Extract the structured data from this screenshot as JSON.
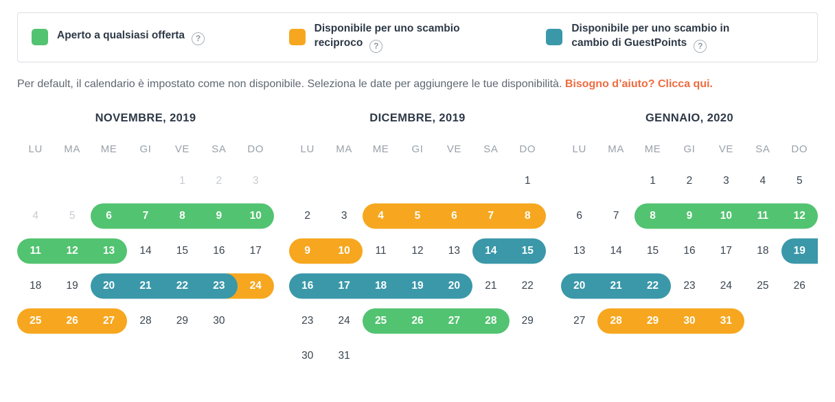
{
  "colors": {
    "green": "#52c370",
    "orange": "#f6a71f",
    "teal": "#3a98a9",
    "link": "#ee6b3f"
  },
  "legend": {
    "help_icon": "?",
    "items": [
      {
        "name": "green",
        "color": "#52c370",
        "label": "Aperto a qualsiasi offerta"
      },
      {
        "name": "orange",
        "color": "#f6a71f",
        "label": "Disponibile per uno scambio reciproco"
      },
      {
        "name": "teal",
        "color": "#3a98a9",
        "label": "Disponibile per uno scambio in cambio di GuestPoints"
      }
    ]
  },
  "intro": {
    "text": "Per default, il calendario è impostato come non disponibile. Seleziona le date per aggiungere le tue disponibilità.",
    "link": "Bisogno d’aiuto? Clicca qui."
  },
  "weekdays": [
    "LU",
    "MA",
    "ME",
    "GI",
    "VE",
    "SA",
    "DO"
  ],
  "months": [
    {
      "title": "NOVEMBRE, 2019",
      "weeks": [
        [
          null,
          null,
          null,
          null,
          {
            "n": 1,
            "muted": true
          },
          {
            "n": 2,
            "muted": true
          },
          {
            "n": 3,
            "muted": true
          }
        ],
        [
          {
            "n": 4,
            "muted": true
          },
          {
            "n": 5,
            "muted": true
          },
          {
            "n": 6,
            "c": "green",
            "p": "start"
          },
          {
            "n": 7,
            "c": "green",
            "p": "mid"
          },
          {
            "n": 8,
            "c": "green",
            "p": "mid"
          },
          {
            "n": 9,
            "c": "green",
            "p": "mid"
          },
          {
            "n": 10,
            "c": "green",
            "p": "end"
          }
        ],
        [
          {
            "n": 11,
            "c": "green",
            "p": "start"
          },
          {
            "n": 12,
            "c": "green",
            "p": "mid"
          },
          {
            "n": 13,
            "c": "green",
            "p": "end"
          },
          {
            "n": 14
          },
          {
            "n": 15
          },
          {
            "n": 16
          },
          {
            "n": 17
          }
        ],
        [
          {
            "n": 18
          },
          {
            "n": 19
          },
          {
            "n": 20,
            "c": "teal",
            "p": "start"
          },
          {
            "n": 21,
            "c": "teal",
            "p": "mid"
          },
          {
            "n": 22,
            "c": "teal",
            "p": "mid"
          },
          {
            "n": 23,
            "c": "teal",
            "p": "end"
          },
          {
            "n": 24,
            "c": "orange",
            "p": "end",
            "overlap": true
          }
        ],
        [
          {
            "n": 25,
            "c": "orange",
            "p": "start"
          },
          {
            "n": 26,
            "c": "orange",
            "p": "mid"
          },
          {
            "n": 27,
            "c": "orange",
            "p": "end"
          },
          {
            "n": 28
          },
          {
            "n": 29
          },
          {
            "n": 30
          },
          null
        ]
      ]
    },
    {
      "title": "DICEMBRE, 2019",
      "weeks": [
        [
          null,
          null,
          null,
          null,
          null,
          null,
          {
            "n": 1
          }
        ],
        [
          {
            "n": 2
          },
          {
            "n": 3
          },
          {
            "n": 4,
            "c": "orange",
            "p": "start"
          },
          {
            "n": 5,
            "c": "orange",
            "p": "mid"
          },
          {
            "n": 6,
            "c": "orange",
            "p": "mid"
          },
          {
            "n": 7,
            "c": "orange",
            "p": "mid"
          },
          {
            "n": 8,
            "c": "orange",
            "p": "end"
          }
        ],
        [
          {
            "n": 9,
            "c": "orange",
            "p": "start"
          },
          {
            "n": 10,
            "c": "orange",
            "p": "end"
          },
          {
            "n": 11
          },
          {
            "n": 12
          },
          {
            "n": 13
          },
          {
            "n": 14,
            "c": "teal",
            "p": "start"
          },
          {
            "n": 15,
            "c": "teal",
            "p": "end"
          }
        ],
        [
          {
            "n": 16,
            "c": "teal",
            "p": "start"
          },
          {
            "n": 17,
            "c": "teal",
            "p": "mid"
          },
          {
            "n": 18,
            "c": "teal",
            "p": "mid"
          },
          {
            "n": 19,
            "c": "teal",
            "p": "mid"
          },
          {
            "n": 20,
            "c": "teal",
            "p": "end"
          },
          {
            "n": 21
          },
          {
            "n": 22
          }
        ],
        [
          {
            "n": 23
          },
          {
            "n": 24
          },
          {
            "n": 25,
            "c": "green",
            "p": "start"
          },
          {
            "n": 26,
            "c": "green",
            "p": "mid"
          },
          {
            "n": 27,
            "c": "green",
            "p": "mid"
          },
          {
            "n": 28,
            "c": "green",
            "p": "end"
          },
          {
            "n": 29
          }
        ],
        [
          {
            "n": 30
          },
          {
            "n": 31
          },
          null,
          null,
          null,
          null,
          null
        ]
      ]
    },
    {
      "title": "GENNAIO, 2020",
      "weeks": [
        [
          null,
          null,
          {
            "n": 1
          },
          {
            "n": 2
          },
          {
            "n": 3
          },
          {
            "n": 4
          },
          {
            "n": 5
          }
        ],
        [
          {
            "n": 6
          },
          {
            "n": 7
          },
          {
            "n": 8,
            "c": "green",
            "p": "start"
          },
          {
            "n": 9,
            "c": "green",
            "p": "mid"
          },
          {
            "n": 10,
            "c": "green",
            "p": "mid"
          },
          {
            "n": 11,
            "c": "green",
            "p": "mid"
          },
          {
            "n": 12,
            "c": "green",
            "p": "end"
          }
        ],
        [
          {
            "n": 13
          },
          {
            "n": 14
          },
          {
            "n": 15
          },
          {
            "n": 16
          },
          {
            "n": 17
          },
          {
            "n": 18
          },
          {
            "n": 19,
            "c": "teal",
            "p": "start"
          }
        ],
        [
          {
            "n": 20,
            "c": "teal",
            "p": "start"
          },
          {
            "n": 21,
            "c": "teal",
            "p": "mid"
          },
          {
            "n": 22,
            "c": "teal",
            "p": "end"
          },
          {
            "n": 23
          },
          {
            "n": 24
          },
          {
            "n": 25
          },
          {
            "n": 26
          }
        ],
        [
          {
            "n": 27
          },
          {
            "n": 28,
            "c": "orange",
            "p": "start"
          },
          {
            "n": 29,
            "c": "orange",
            "p": "mid"
          },
          {
            "n": 30,
            "c": "orange",
            "p": "mid"
          },
          {
            "n": 31,
            "c": "orange",
            "p": "end"
          },
          null,
          null
        ]
      ]
    }
  ]
}
